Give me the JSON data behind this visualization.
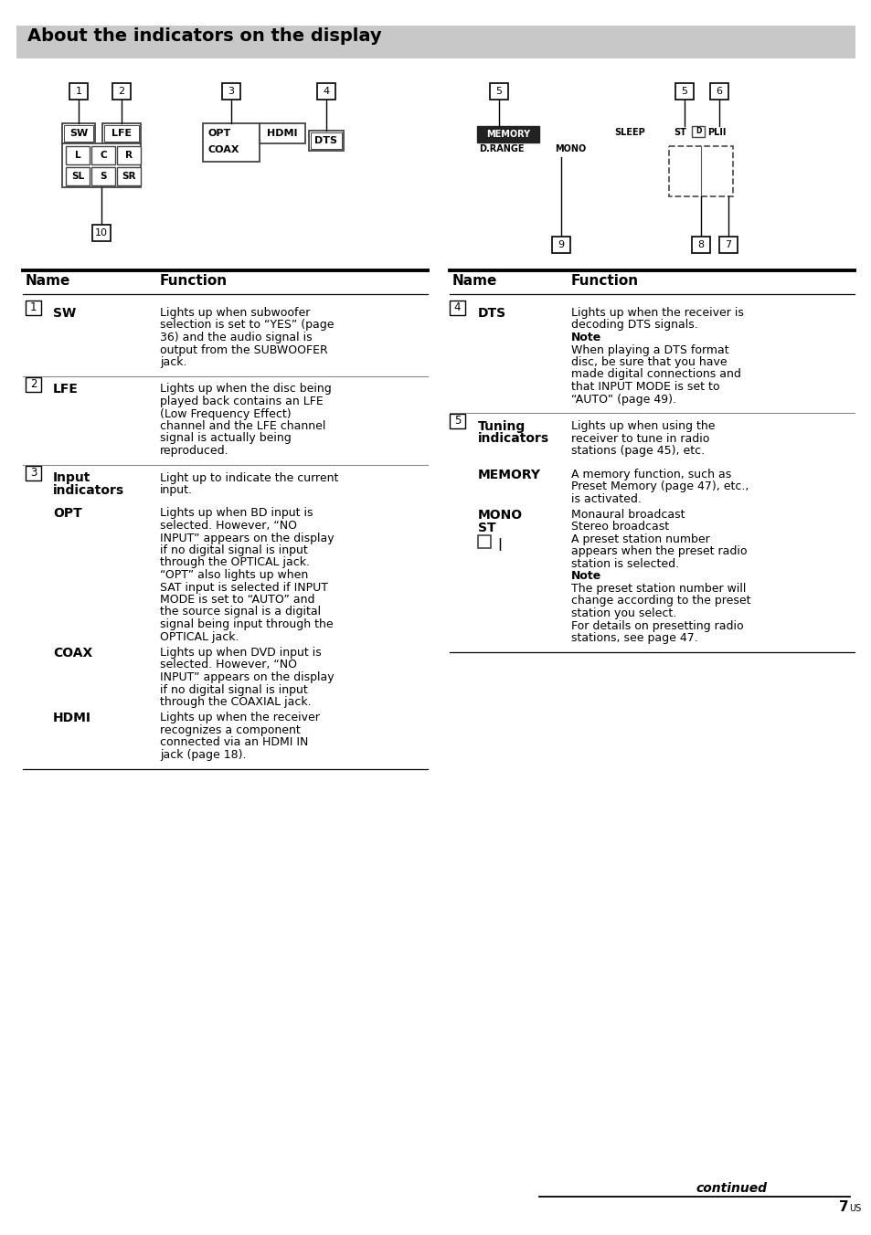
{
  "title": "About the indicators on the display",
  "title_bg": "#c8c8c8",
  "page_bg": "#ffffff",
  "footer_text": "continued",
  "page_num": "7",
  "page_num_sup": "US"
}
